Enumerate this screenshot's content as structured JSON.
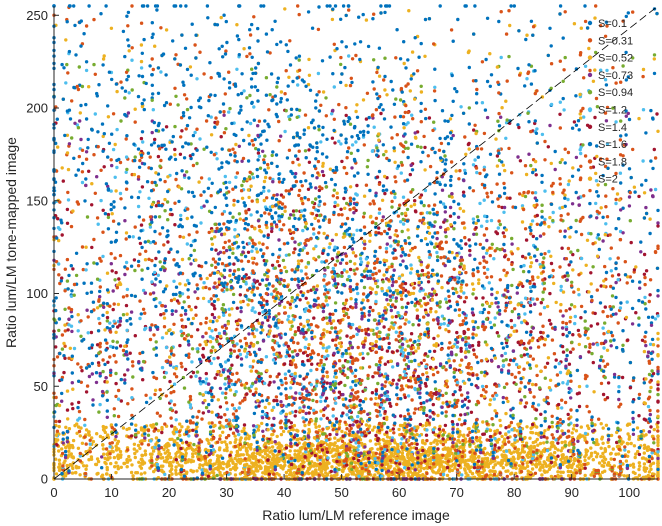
{
  "chart_data": {
    "type": "scatter",
    "title": "",
    "xlabel": "Ratio lum/LM reference image",
    "ylabel": "Ratio lum/LM tone-mapped image",
    "xlim": [
      0,
      105
    ],
    "ylim": [
      0,
      255
    ],
    "xticks": [
      0,
      10,
      20,
      30,
      40,
      50,
      60,
      70,
      80,
      90,
      100
    ],
    "yticks": [
      0,
      50,
      100,
      150,
      200,
      250
    ],
    "grid": false,
    "legend_position": "top-right",
    "reference_line": {
      "style": "dashed",
      "color": "#000000",
      "points": [
        [
          0,
          0
        ],
        [
          105,
          255
        ]
      ]
    },
    "series": [
      {
        "name": "S=0.1",
        "color": "#0072BD",
        "count": 1100,
        "x_range": [
          0,
          105
        ],
        "y_range": [
          0,
          255
        ],
        "center": [
          35,
          170
        ]
      },
      {
        "name": "S=0.31",
        "color": "#D95319",
        "count": 900,
        "x_range": [
          0,
          105
        ],
        "y_range": [
          0,
          255
        ],
        "center": [
          50,
          110
        ]
      },
      {
        "name": "S=0.52",
        "color": "#EDB120",
        "count": 900,
        "x_range": [
          0,
          105
        ],
        "y_range": [
          0,
          255
        ],
        "center": [
          55,
          90
        ]
      },
      {
        "name": "S=0.73",
        "color": "#7E2F8E",
        "count": 500,
        "x_range": [
          0,
          105
        ],
        "y_range": [
          0,
          200
        ],
        "center": [
          55,
          70
        ]
      },
      {
        "name": "S=0.94",
        "color": "#77AC30",
        "count": 600,
        "x_range": [
          0,
          105
        ],
        "y_range": [
          0,
          230
        ],
        "center": [
          50,
          80
        ]
      },
      {
        "name": "S=1.2",
        "color": "#4DBEEE",
        "count": 700,
        "x_range": [
          0,
          105
        ],
        "y_range": [
          0,
          230
        ],
        "center": [
          50,
          75
        ]
      },
      {
        "name": "S=1.4",
        "color": "#A2142F",
        "count": 800,
        "x_range": [
          0,
          105
        ],
        "y_range": [
          0,
          200
        ],
        "center": [
          55,
          60
        ]
      },
      {
        "name": "S=1.6",
        "color": "#0072BD",
        "count": 700,
        "x_range": [
          0,
          105
        ],
        "y_range": [
          0,
          220
        ],
        "center": [
          55,
          70
        ]
      },
      {
        "name": "S=1.8",
        "color": "#D95319",
        "count": 900,
        "x_range": [
          0,
          105
        ],
        "y_range": [
          0,
          180
        ],
        "center": [
          55,
          50
        ]
      },
      {
        "name": "S=2",
        "color": "#EDB120",
        "count": 2600,
        "x_range": [
          0,
          105
        ],
        "y_range": [
          0,
          30
        ],
        "center": [
          55,
          10
        ]
      }
    ]
  }
}
